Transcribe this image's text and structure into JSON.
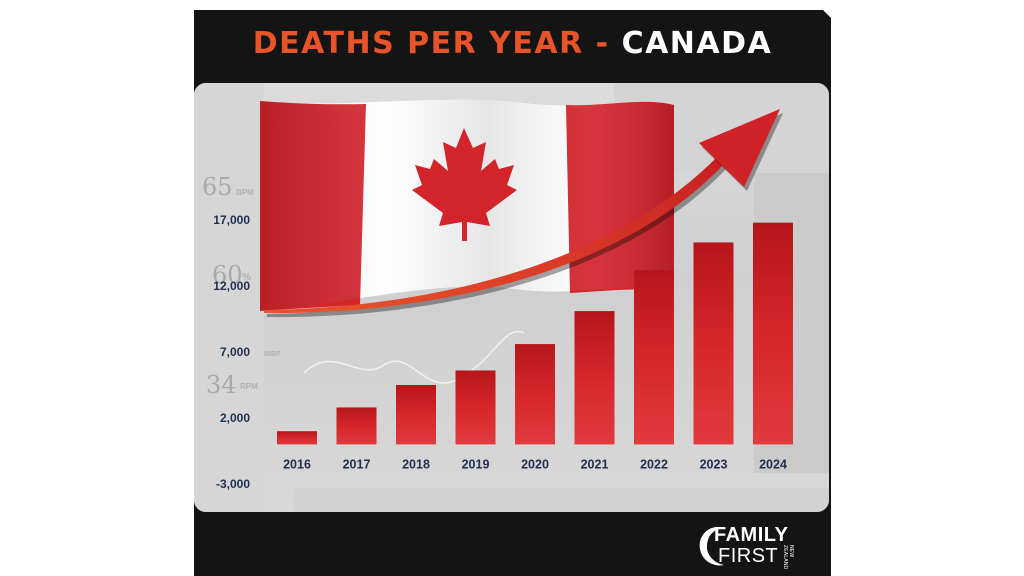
{
  "title": {
    "part1": "DEATHS PER YEAR -",
    "part2": "CANADA"
  },
  "colors": {
    "accent_orange": "#e8542a",
    "bar_red": "#cc1c1e",
    "label_navy": "#1f2f4f",
    "flag_red": "#d3232b"
  },
  "background_monitor": {
    "bpm": "65",
    "bpm_unit": "BPM",
    "spo2": "60",
    "spo2_unit": "%",
    "resp": "34",
    "resp_unit": "RPM",
    "nibp": "NIBP"
  },
  "logo": {
    "line1": "FAMILY",
    "line2": "FIRST",
    "region": "NEW ZEALAND"
  },
  "chart_data": {
    "type": "bar",
    "title": "DEATHS PER YEAR - CANADA",
    "xlabel": "",
    "ylabel": "",
    "categories": [
      "2016",
      "2017",
      "2018",
      "2019",
      "2020",
      "2021",
      "2022",
      "2023",
      "2024"
    ],
    "values": [
      1000,
      2800,
      4500,
      5600,
      7600,
      10100,
      13200,
      15300,
      16800
    ],
    "ylim": [
      -3000,
      17000
    ],
    "yticks": [
      17000,
      12000,
      7000,
      2000,
      -3000
    ],
    "ytick_labels": [
      "17,000",
      "12,000",
      "7,000",
      "2,000",
      "-3,000"
    ],
    "grid": false,
    "legend": "none",
    "annotations": [
      "rising trend arrow",
      "Canadian flag"
    ]
  }
}
